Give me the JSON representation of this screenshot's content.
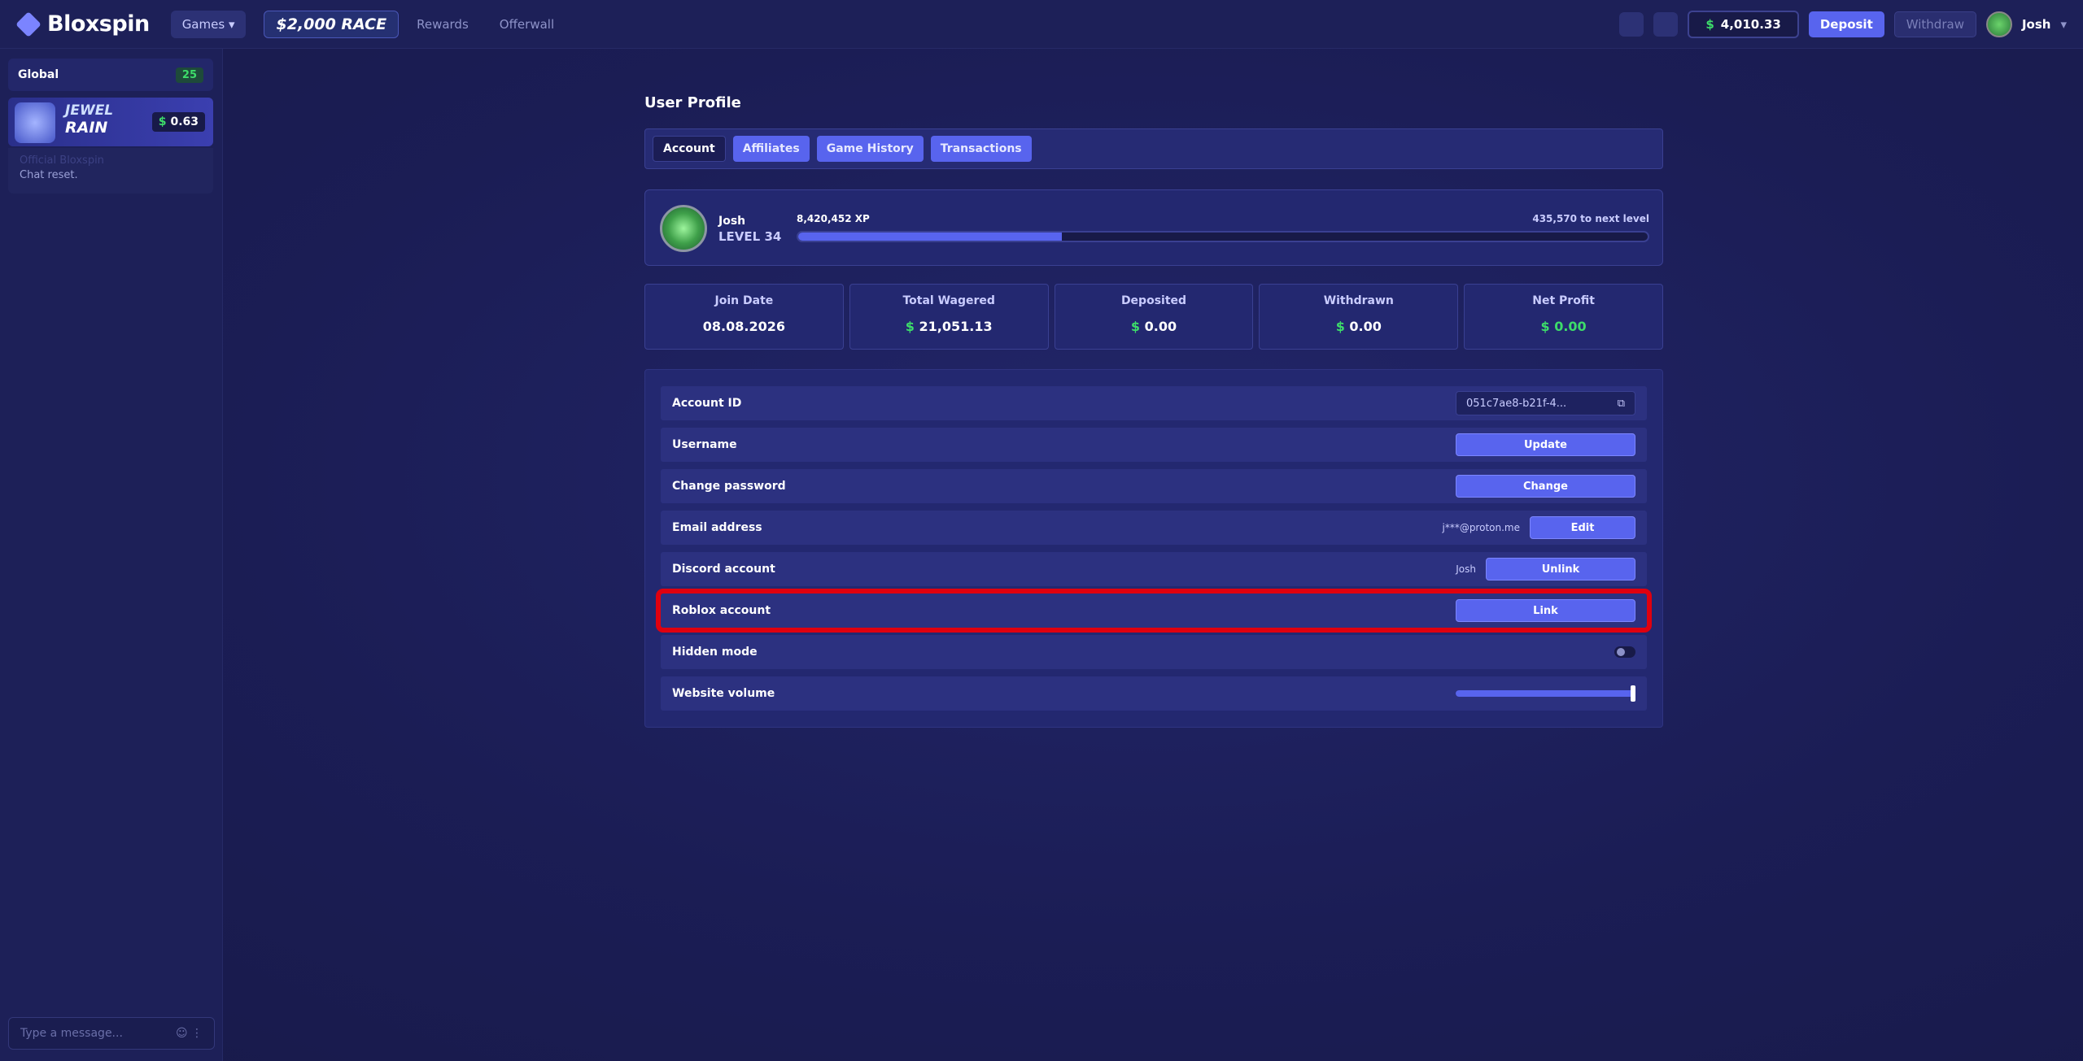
{
  "header": {
    "brand": "Bloxspin",
    "nav": [
      "Games",
      "$2,000 RACE",
      "Rewards",
      "Offerwall"
    ],
    "currency": "$",
    "balance": "4,010.33",
    "deposit": "Deposit",
    "withdraw": "Withdraw",
    "user": "Josh"
  },
  "sidebar": {
    "channel": "Global",
    "online": "25",
    "rain": {
      "line1": "JEWEL",
      "line2": "RAIN",
      "currency": "$",
      "amount": "0.63"
    },
    "message": {
      "author": "Official Bloxspin",
      "text": "Chat reset."
    },
    "input_placeholder": "Type a message..."
  },
  "profile": {
    "title": "User Profile",
    "tabs": [
      "Account",
      "Affiliates",
      "Game History",
      "Transactions"
    ],
    "active_tab": 0,
    "user": {
      "name": "Josh",
      "level": "LEVEL 34",
      "xp": "8,420,452 XP",
      "to_next": "435,570 to next level",
      "progress": 0.31
    },
    "stats": [
      {
        "label": "Join Date",
        "value": "08.08.2026"
      },
      {
        "label": "Total Wagered",
        "currency": "$",
        "value": "21,051.13"
      },
      {
        "label": "Deposited",
        "currency": "$",
        "value": "0.00"
      },
      {
        "label": "Withdrawn",
        "currency": "$",
        "value": "0.00"
      },
      {
        "label": "Net Profit",
        "currency": "$",
        "value": "0.00",
        "color": "#3ddc6a"
      }
    ],
    "settings": [
      {
        "label": "Account ID",
        "field": "051c7ae8-b21f-4..."
      },
      {
        "label": "Username",
        "button": "Update"
      },
      {
        "label": "Change password",
        "button": "Change"
      },
      {
        "label": "Email address",
        "info": "j***@proton.me",
        "button": "Edit"
      },
      {
        "label": "Discord account",
        "info": "Josh",
        "button": "Unlink"
      },
      {
        "label": "Roblox account",
        "button": "Link"
      },
      {
        "label": "Hidden mode",
        "toggle": false
      },
      {
        "label": "Website volume",
        "slider": 1
      }
    ],
    "highlighted_row": 5
  }
}
